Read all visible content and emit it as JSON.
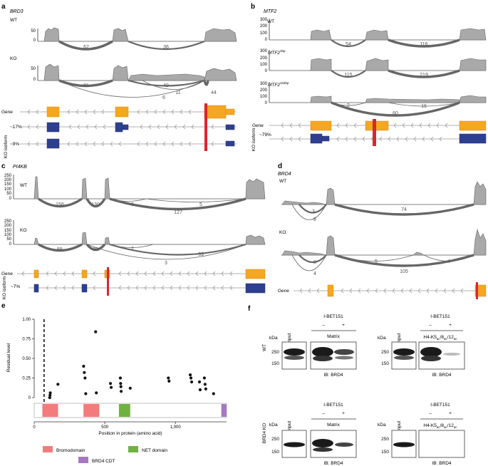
{
  "panel_a": {
    "letter": "a",
    "gene": "BRD3",
    "tracks": [
      {
        "label": "WT",
        "ticks": [
          "50",
          "0"
        ],
        "junctions": [
          "62",
          "36"
        ]
      },
      {
        "label": "KO",
        "ticks": [
          "50",
          "0"
        ],
        "junctions": [
          "81",
          "49",
          "11",
          "6",
          "44"
        ]
      }
    ],
    "gene_label": "Gene",
    "isoform_group": "KO isoform",
    "isoform_pcts": [
      "~17%",
      "~9%"
    ]
  },
  "panel_b": {
    "letter": "b",
    "gene": "MTF2",
    "ticks": [
      "300",
      "200",
      "100",
      "0"
    ],
    "tracks": [
      {
        "label": "WT",
        "sup": "",
        "junctions": [
          "54",
          "116"
        ]
      },
      {
        "label": "MTF2",
        "sup": "1bp",
        "junctions": [
          "115",
          "219"
        ]
      },
      {
        "label": "MTF2",
        "sup": "104bp",
        "junctions": [
          "2",
          "16",
          "60"
        ]
      }
    ],
    "gene_label": "Gene",
    "isoform_group": "KO isoform",
    "isoform_pcts": [
      "~79%"
    ]
  },
  "panel_c": {
    "letter": "c",
    "gene": "PI4KB",
    "ticks": [
      "250",
      "200",
      "150",
      "100",
      "50",
      "0"
    ],
    "tracks": [
      {
        "label": "WT",
        "junctions": [
          "156",
          "130",
          "6",
          "5",
          "127"
        ]
      },
      {
        "label": "KO",
        "junctions": [
          "55",
          "33",
          "2",
          "39",
          "3"
        ]
      }
    ],
    "gene_label": "Gene",
    "isoform_group": "KO isoform",
    "isoform_pcts": [
      "~7%"
    ]
  },
  "panel_d": {
    "letter": "d",
    "gene": "BRD4",
    "tracks": [
      {
        "label": "WT",
        "junctions": [
          "3",
          "8",
          "74"
        ]
      },
      {
        "label": "KO",
        "junctions": [
          "8",
          "4",
          "5",
          "4",
          "105"
        ]
      }
    ],
    "gene_label": "Gene"
  },
  "panel_e": {
    "letter": "e",
    "legend": [
      {
        "label": "Bromodomain",
        "color": "#f27c7c"
      },
      {
        "label": "NET domain",
        "color": "#6fb23f"
      },
      {
        "label": "BRD4 CDT",
        "color": "#a579c2"
      }
    ]
  },
  "chart_data": {
    "type": "scatter",
    "xlabel": "Position in protein (amino acid)",
    "ylabel": "Residual level",
    "x_ticks": [
      "0",
      "500",
      "1,000"
    ],
    "y_ticks": [
      "0",
      "0.25",
      "0.50",
      "0.75",
      "1.00"
    ],
    "xlim": [
      0,
      1362
    ],
    "ylim": [
      0,
      1.0
    ],
    "cut_site_aa": 70,
    "points": [
      {
        "x": 110,
        "y": 0.0
      },
      {
        "x": 112,
        "y": 0.03
      },
      {
        "x": 114,
        "y": 0.06
      },
      {
        "x": 168,
        "y": 0.17
      },
      {
        "x": 350,
        "y": 0.4
      },
      {
        "x": 355,
        "y": 0.32
      },
      {
        "x": 360,
        "y": 0.25
      },
      {
        "x": 365,
        "y": 0.05
      },
      {
        "x": 435,
        "y": 0.84
      },
      {
        "x": 440,
        "y": 0.06
      },
      {
        "x": 540,
        "y": 0.18
      },
      {
        "x": 545,
        "y": 0.13
      },
      {
        "x": 610,
        "y": 0.25
      },
      {
        "x": 612,
        "y": 0.18
      },
      {
        "x": 614,
        "y": 0.14
      },
      {
        "x": 616,
        "y": 0.08
      },
      {
        "x": 680,
        "y": 0.12
      },
      {
        "x": 950,
        "y": 0.25
      },
      {
        "x": 955,
        "y": 0.21
      },
      {
        "x": 1105,
        "y": 0.29
      },
      {
        "x": 1110,
        "y": 0.25
      },
      {
        "x": 1115,
        "y": 0.2
      },
      {
        "x": 1170,
        "y": 0.2
      },
      {
        "x": 1175,
        "y": 0.1
      },
      {
        "x": 1205,
        "y": 0.25
      },
      {
        "x": 1210,
        "y": 0.17
      },
      {
        "x": 1215,
        "y": 0.11
      },
      {
        "x": 1270,
        "y": 0.05
      }
    ],
    "domains": [
      {
        "name": "Bromodomain",
        "start": 58,
        "end": 169
      },
      {
        "name": "Bromodomain",
        "start": 349,
        "end": 461
      },
      {
        "name": "NET domain",
        "start": 600,
        "end": 680
      },
      {
        "name": "BRD4 CDT",
        "start": 1325,
        "end": 1362
      }
    ]
  },
  "panel_f": {
    "letter": "f",
    "row_labels": [
      "WT",
      "BRD4 KO"
    ],
    "kda_label": "kDa",
    "mw": [
      "250",
      "150"
    ],
    "input_label": "Input",
    "treatment": "I-BET151",
    "minus": "–",
    "plus": "+",
    "matrix": "Matrix",
    "peptide_main": "H4-K5",
    "peptide_sub1": "ac",
    "peptide_mid1": "/8",
    "peptide_sub2": "ac",
    "peptide_mid2": "/12",
    "peptide_sub3": "ac",
    "ib": "IB: BRD4"
  }
}
